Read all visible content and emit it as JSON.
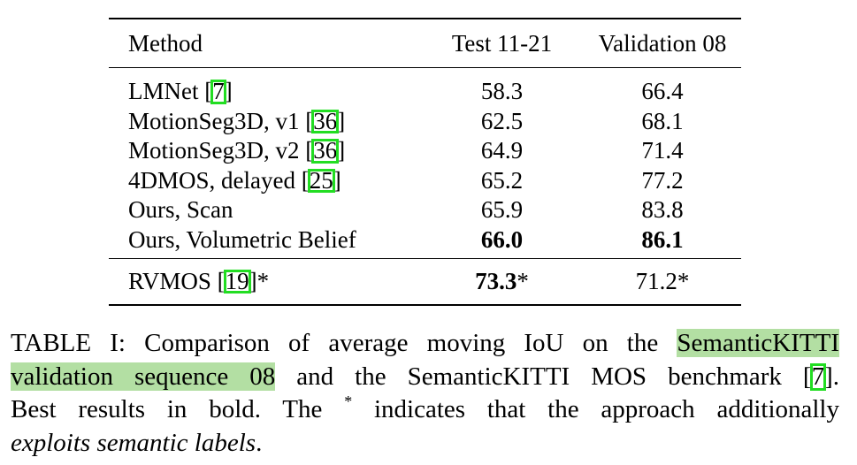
{
  "table": {
    "headers": [
      "Method",
      "Test 11-21",
      "Validation 08"
    ],
    "rows": [
      {
        "method": "LMNet [",
        "cite": "7",
        "method_end": "]",
        "test": "58.3",
        "val": "66.4"
      },
      {
        "method": "MotionSeg3D, v1 [",
        "cite": "36",
        "method_end": "]",
        "test": "62.5",
        "val": "68.1"
      },
      {
        "method": "MotionSeg3D, v2 [",
        "cite": "36",
        "method_end": "]",
        "test": "64.9",
        "val": "71.4"
      },
      {
        "method": "4DMOS, delayed [",
        "cite": "25",
        "method_end": "]",
        "test": "65.2",
        "val": "77.2"
      },
      {
        "method": "Ours, Scan",
        "cite": "",
        "method_end": "",
        "test": "65.9",
        "val": "83.8"
      },
      {
        "method": "Ours, Volumetric Belief",
        "cite": "",
        "method_end": "",
        "test": "66.0",
        "val": "86.1"
      }
    ],
    "last_row": {
      "method": "RVMOS [",
      "cite": "19",
      "method_end": "]*",
      "test": "73.3",
      "test_suffix": "*",
      "val": "71.2*"
    }
  },
  "caption": {
    "line1_pre": "TABLE I: Comparison of average moving IoU on the ",
    "line1_hl": "SemanticKITTI",
    "line2_hl": "validation sequence 08",
    "line2_post": " and the SemanticKITTI MOS benchmark [",
    "line2_cite": "7",
    "line2_end": "].",
    "line3_pre": "Best results in bold. The ",
    "line3_sup": "*",
    "line3_post": " indicates that the approach additionally",
    "line4_em": "exploits semantic labels",
    "line4_end": "."
  }
}
